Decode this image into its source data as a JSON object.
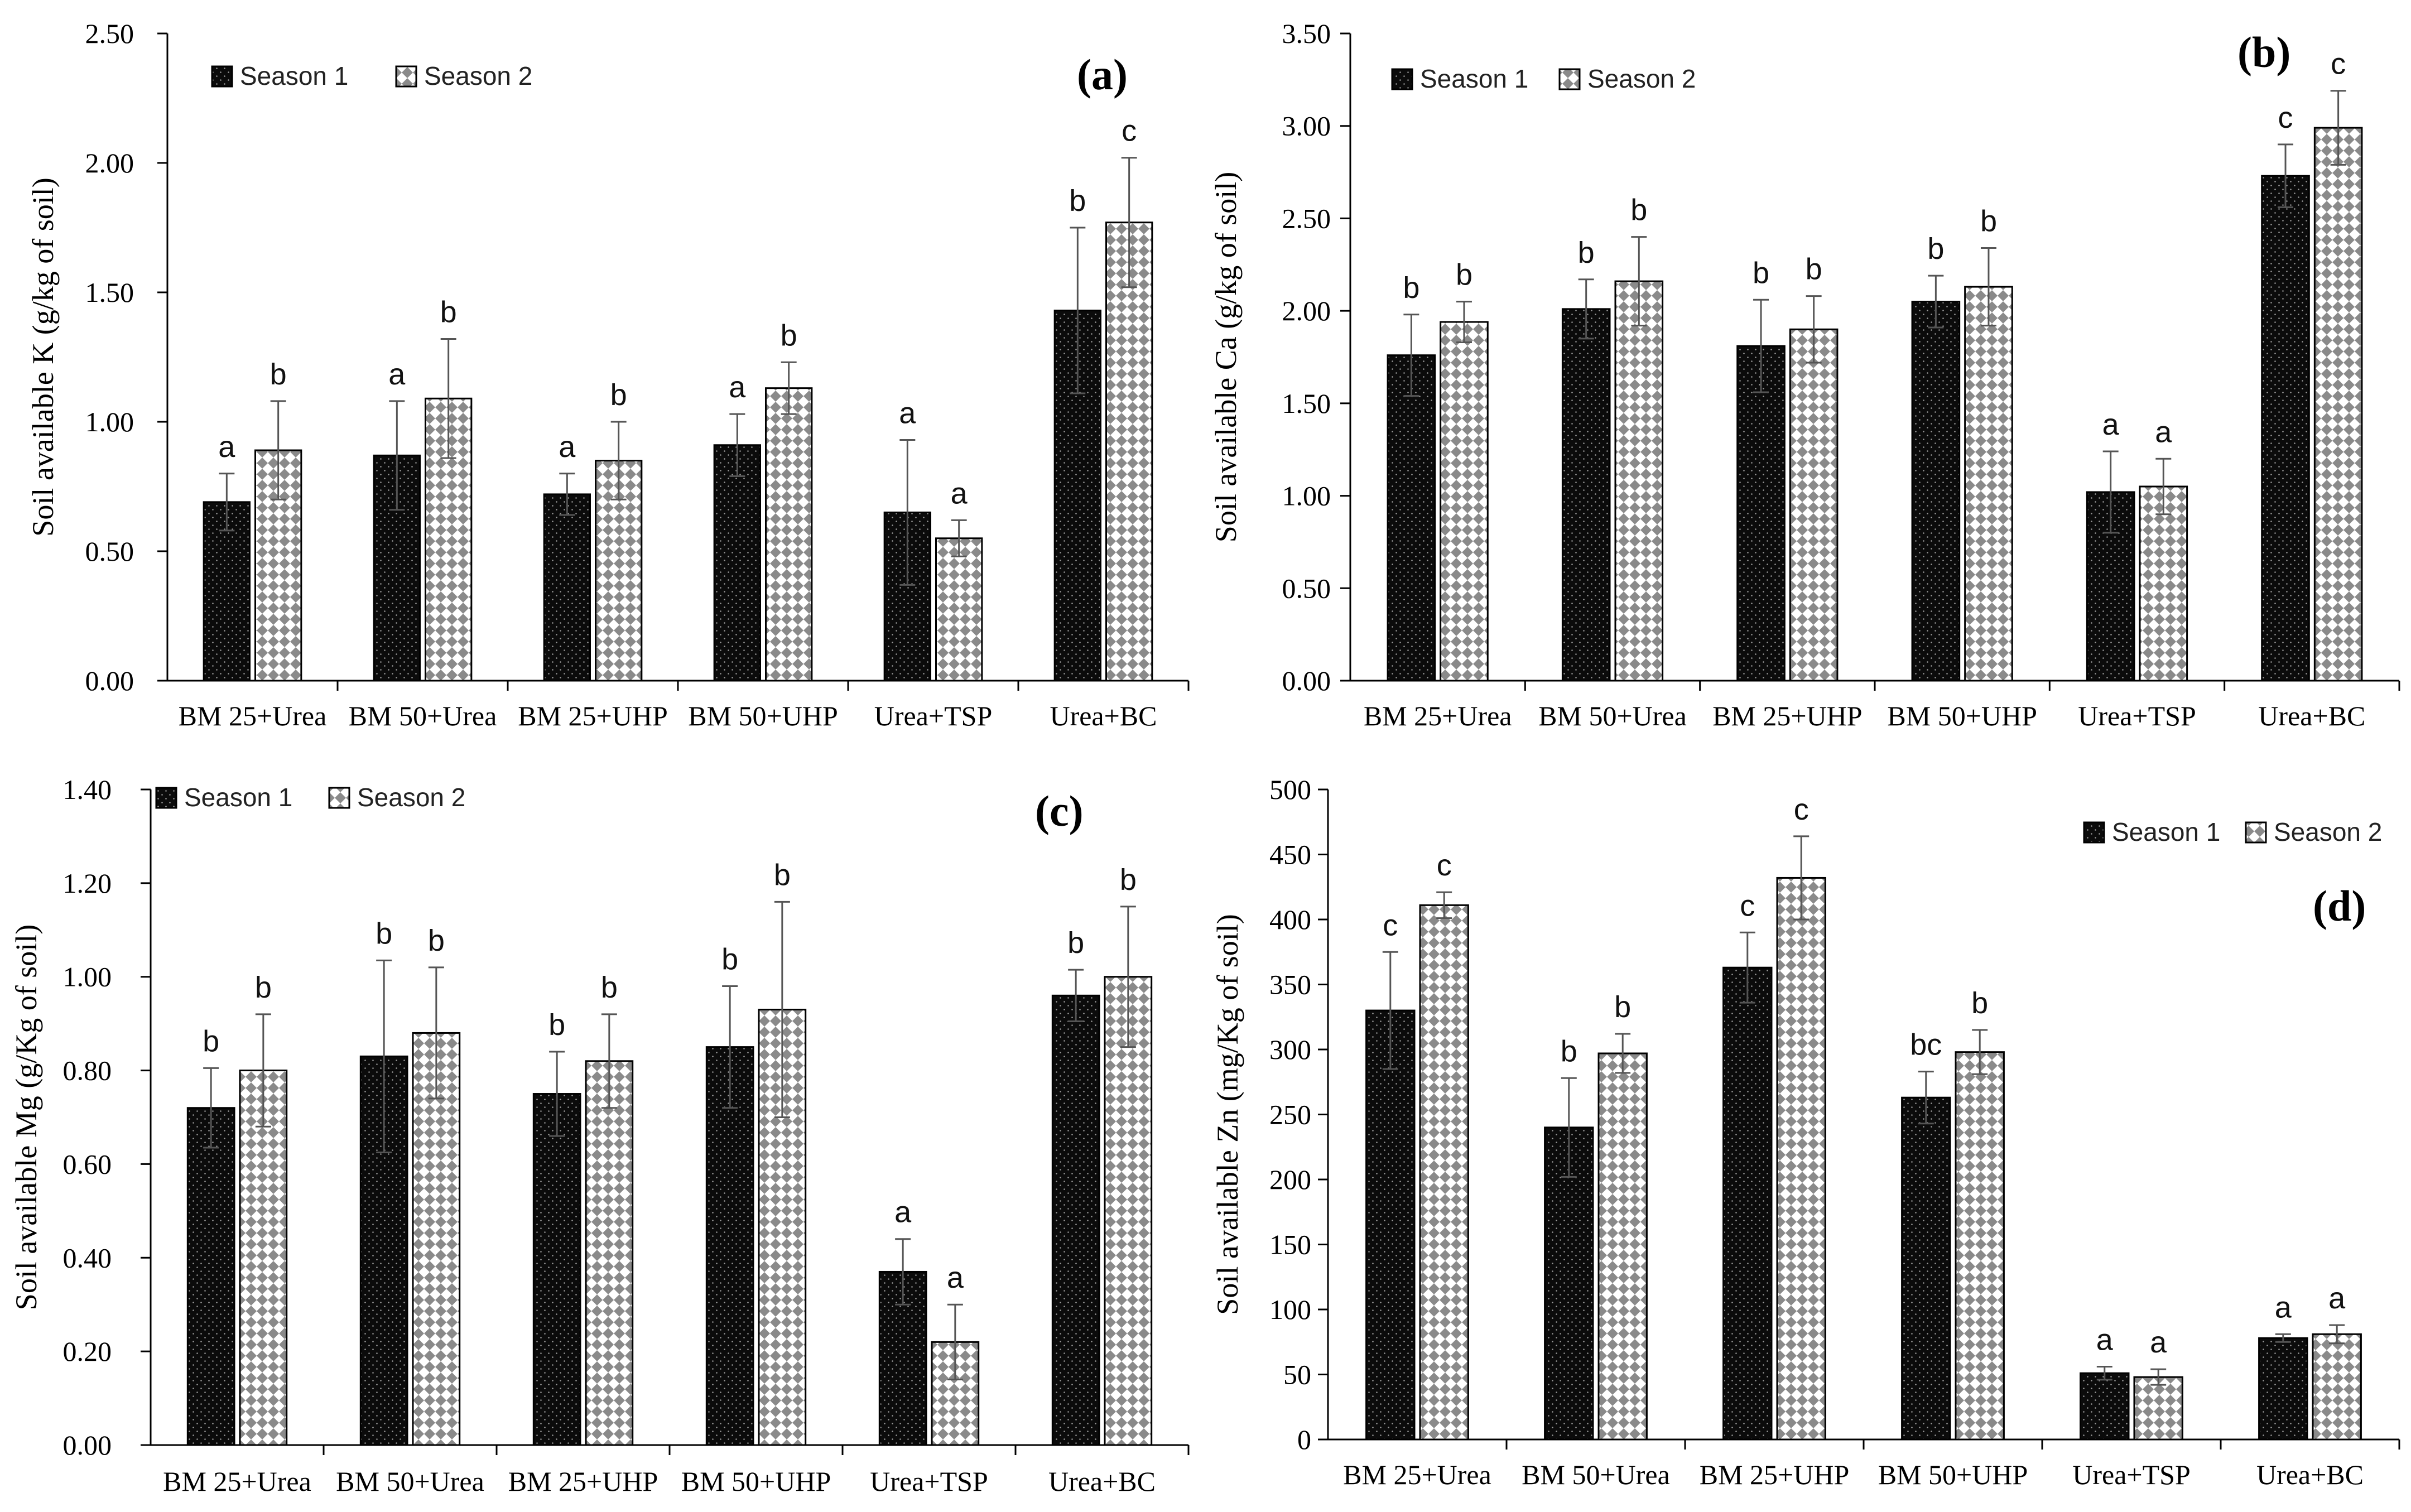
{
  "chart_data": [
    {
      "type": "bar",
      "panel_label": "(a)",
      "ylabel": "Soil available K (g/kg of soil)",
      "xlabel": "",
      "ylim": [
        0,
        2.5
      ],
      "ytick_step": 0.5,
      "ytick_decimals": 2,
      "legend_position": "top-left",
      "categories": [
        "BM 25+Urea",
        "BM 50+Urea",
        "BM 25+UHP",
        "BM 50+UHP",
        "Urea+TSP",
        "Urea+BC"
      ],
      "series": [
        {
          "name": "Season 1",
          "values": [
            0.69,
            0.87,
            0.72,
            0.91,
            0.65,
            1.43
          ],
          "errors": [
            0.11,
            0.21,
            0.08,
            0.12,
            0.28,
            0.32
          ],
          "labels": [
            "a",
            "a",
            "a",
            "a",
            "a",
            "b"
          ]
        },
        {
          "name": "Season 2",
          "values": [
            0.89,
            1.09,
            0.85,
            1.13,
            0.55,
            1.77
          ],
          "errors": [
            0.19,
            0.23,
            0.15,
            0.1,
            0.07,
            0.25
          ],
          "labels": [
            "b",
            "b",
            "b",
            "b",
            "a",
            "c"
          ]
        }
      ]
    },
    {
      "type": "bar",
      "panel_label": "(b)",
      "ylabel": "Soil available Ca (g/kg of soil)",
      "xlabel": "",
      "ylim": [
        0,
        3.5
      ],
      "ytick_step": 0.5,
      "ytick_decimals": 2,
      "legend_position": "top-left",
      "categories": [
        "BM 25+Urea",
        "BM 50+Urea",
        "BM 25+UHP",
        "BM 50+UHP",
        "Urea+TSP",
        "Urea+BC"
      ],
      "series": [
        {
          "name": "Season 1",
          "values": [
            1.76,
            2.01,
            1.81,
            2.05,
            1.02,
            2.73
          ],
          "errors": [
            0.22,
            0.16,
            0.25,
            0.14,
            0.22,
            0.17
          ],
          "labels": [
            "b",
            "b",
            "b",
            "b",
            "a",
            "c"
          ]
        },
        {
          "name": "Season 2",
          "values": [
            1.94,
            2.16,
            1.9,
            2.13,
            1.05,
            2.99
          ],
          "errors": [
            0.11,
            0.24,
            0.18,
            0.21,
            0.15,
            0.2
          ],
          "labels": [
            "b",
            "b",
            "b",
            "b",
            "a",
            "c"
          ]
        }
      ]
    },
    {
      "type": "bar",
      "panel_label": "(c)",
      "ylabel": "Soil available Mg (g/Kg of soil)",
      "xlabel": "",
      "ylim": [
        0,
        1.4
      ],
      "ytick_step": 0.2,
      "ytick_decimals": 2,
      "legend_position": "top-left",
      "categories": [
        "BM 25+Urea",
        "BM 50+Urea",
        "BM 25+UHP",
        "BM 50+UHP",
        "Urea+TSP",
        "Urea+BC"
      ],
      "series": [
        {
          "name": "Season 1",
          "values": [
            0.72,
            0.83,
            0.75,
            0.85,
            0.37,
            0.96
          ],
          "errors": [
            0.085,
            0.205,
            0.09,
            0.13,
            0.07,
            0.055
          ],
          "labels": [
            "b",
            "b",
            "b",
            "b",
            "a",
            "b"
          ]
        },
        {
          "name": "Season 2",
          "values": [
            0.8,
            0.88,
            0.82,
            0.93,
            0.22,
            1.0
          ],
          "errors": [
            0.12,
            0.14,
            0.1,
            0.23,
            0.08,
            0.15
          ],
          "labels": [
            "b",
            "b",
            "b",
            "b",
            "a",
            "b"
          ]
        }
      ]
    },
    {
      "type": "bar",
      "panel_label": "(d)",
      "ylabel": "Soil available Zn (mg/Kg of soil)",
      "xlabel": "",
      "ylim": [
        0,
        500
      ],
      "ytick_step": 50,
      "ytick_decimals": 0,
      "legend_position": "top-right",
      "categories": [
        "BM 25+Urea",
        "BM 50+Urea",
        "BM 25+UHP",
        "BM 50+UHP",
        "Urea+TSP",
        "Urea+BC"
      ],
      "series": [
        {
          "name": "Season 1",
          "values": [
            330,
            240,
            363,
            263,
            51,
            78
          ],
          "errors": [
            45,
            38,
            27,
            20,
            5,
            3
          ],
          "labels": [
            "c",
            "b",
            "c",
            "bc",
            "a",
            "a"
          ]
        },
        {
          "name": "Season 2",
          "values": [
            411,
            297,
            432,
            298,
            48,
            81
          ],
          "errors": [
            10,
            15,
            32,
            17,
            6,
            7
          ],
          "labels": [
            "c",
            "b",
            "c",
            "b",
            "a",
            "a"
          ]
        }
      ]
    }
  ]
}
